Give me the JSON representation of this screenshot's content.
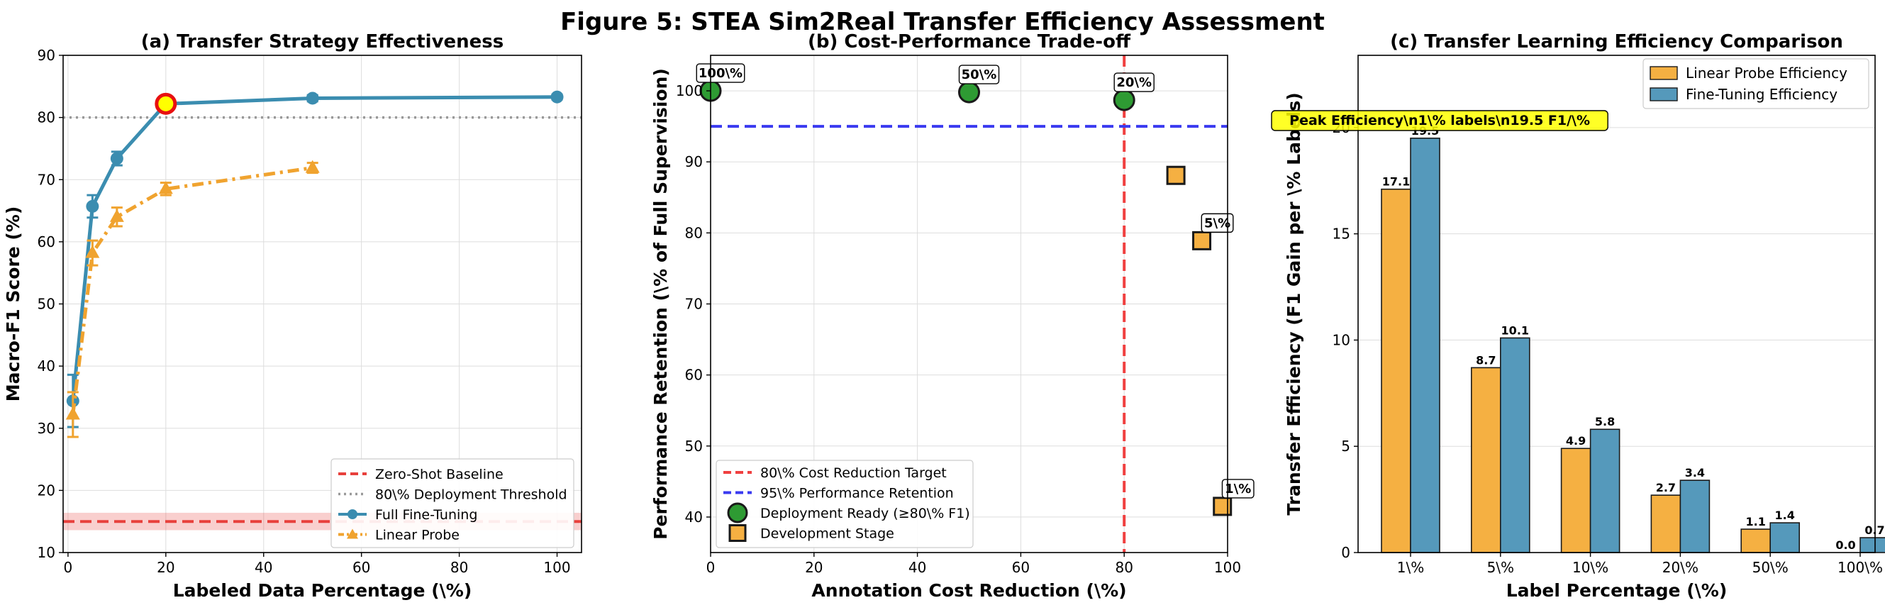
{
  "figure_title": "Figure 5: STEA Sim2Real Transfer Efficiency Assessment",
  "colors": {
    "fine_tuning": "#3B8DB0",
    "linear_probe": "#F0A32F",
    "zero_shot": "#E8403C",
    "threshold": "#999999",
    "ready": "#2E9B33",
    "dev": "#F5B042",
    "target_red": "#F04040",
    "retention_blue": "#3A3AF0",
    "bar_lp": "#F5B042",
    "bar_ft": "#5599BB",
    "highlight_fill": "#FFFF00",
    "highlight_edge": "#E81010"
  },
  "chart_data": [
    {
      "type": "line",
      "title": "(a) Transfer Strategy Effectiveness",
      "xlabel": "Labeled Data Percentage (\\%)",
      "ylabel": "Macro-F1 Score (%)",
      "xlim": [
        -1,
        105
      ],
      "ylim": [
        10,
        90
      ],
      "xticks": [
        0,
        20,
        40,
        60,
        80,
        100
      ],
      "yticks": [
        10,
        20,
        30,
        40,
        50,
        60,
        70,
        80,
        90
      ],
      "grid": true,
      "legend_position": "lower-right",
      "zero_shot_baseline": {
        "name": "Zero-Shot Baseline",
        "y": 15,
        "band": [
          13.6,
          16.4
        ]
      },
      "deployment_threshold": {
        "name": "80\\% Deployment Threshold",
        "y": 80
      },
      "series": [
        {
          "name": "Full Fine-Tuning",
          "marker": "circle",
          "x": [
            1,
            5,
            10,
            20,
            50,
            100
          ],
          "y": [
            34.4,
            65.7,
            73.4,
            82.2,
            83.1,
            83.3
          ],
          "err": [
            4.2,
            1.8,
            1.1,
            0.8,
            0.5,
            0.4
          ]
        },
        {
          "name": "Linear Probe",
          "marker": "triangle",
          "x": [
            1,
            5,
            10,
            20,
            50
          ],
          "y": [
            32.2,
            58.2,
            64.0,
            68.5,
            71.9
          ],
          "err": [
            3.6,
            2.0,
            1.5,
            1.0,
            0.8
          ]
        }
      ],
      "highlight_point": {
        "x": 20,
        "y": 82.2
      }
    },
    {
      "type": "scatter",
      "title": "(b) Cost-Performance Trade-off",
      "xlabel": "Annotation Cost Reduction (\\%)",
      "ylabel": "Performance Retention (\\% of Full Supervision)",
      "xlim": [
        0,
        100
      ],
      "ylim": [
        35,
        105
      ],
      "xticks": [
        0,
        20,
        40,
        60,
        80,
        100
      ],
      "yticks": [
        40,
        50,
        60,
        70,
        80,
        90,
        100
      ],
      "grid": true,
      "legend_position": "lower-left",
      "cost_target": {
        "name": "80\\% Cost Reduction Target",
        "x": 80
      },
      "retention_line": {
        "name": "95\\% Performance Retention",
        "y": 95
      },
      "series": [
        {
          "name": "Deployment Ready (≥80\\% F1)",
          "marker": "circle",
          "points": [
            {
              "x": 0,
              "y": 100,
              "label": "100\\%"
            },
            {
              "x": 50,
              "y": 99.8,
              "label": "50\\%"
            },
            {
              "x": 80,
              "y": 98.7,
              "label": "20\\%"
            }
          ]
        },
        {
          "name": "Development Stage",
          "marker": "square",
          "points": [
            {
              "x": 90,
              "y": 88.1,
              "label": ""
            },
            {
              "x": 95,
              "y": 78.9,
              "label": "5\\%"
            },
            {
              "x": 99,
              "y": 41.5,
              "label": "1\\%"
            }
          ]
        }
      ]
    },
    {
      "type": "bar",
      "title": "(c) Transfer Learning Efficiency Comparison",
      "xlabel": "Label Percentage (\\%)",
      "ylabel": "Transfer Efficiency (F1 Gain per \\% Labels)",
      "ylim": [
        0,
        23.4
      ],
      "yticks": [
        0,
        5,
        10,
        15,
        20
      ],
      "grid": true,
      "legend_position": "top-right",
      "categories": [
        "1\\%",
        "5\\%",
        "10\\%",
        "20\\%",
        "50\\%",
        "100\\%"
      ],
      "series": [
        {
          "name": "Linear Probe Efficiency",
          "values": [
            17.1,
            8.7,
            4.9,
            2.7,
            1.1,
            0.0
          ],
          "labels": [
            "17.1",
            "8.7",
            "4.9",
            "2.7",
            "1.1",
            "0.0"
          ]
        },
        {
          "name": "Fine-Tuning Efficiency",
          "values": [
            19.5,
            10.1,
            5.8,
            3.4,
            1.4,
            0.7
          ],
          "labels": [
            "19.5",
            "10.1",
            "5.8",
            "3.4",
            "1.4",
            "0.7"
          ]
        }
      ],
      "annotation": "Peak Efficiency\\n1\\% labels\\n19.5 F1/\\%"
    }
  ]
}
